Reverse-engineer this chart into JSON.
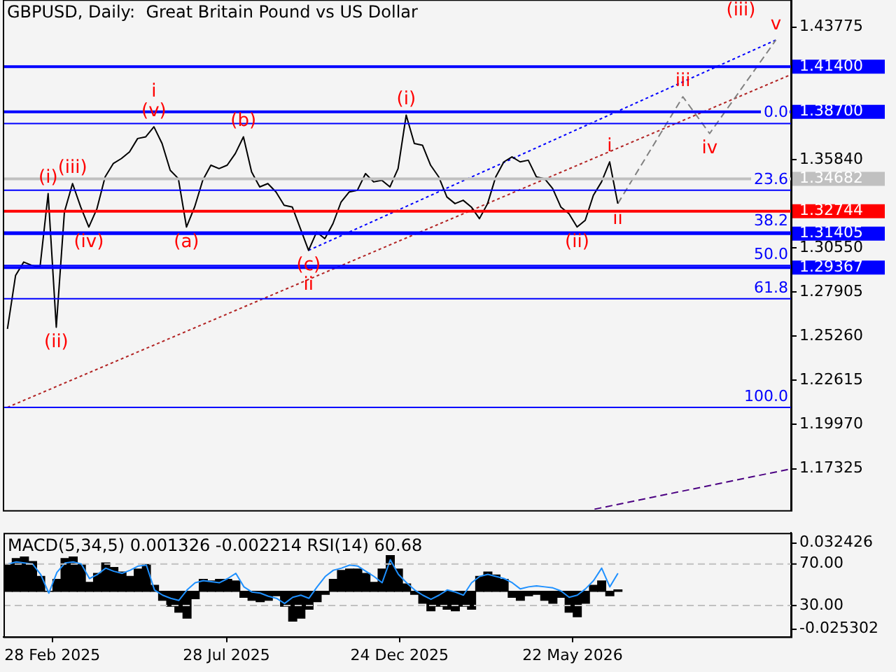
{
  "chart_data": [
    {
      "type": "line",
      "title": "GBPUSD, Daily:  Great Britain Pound vs US Dollar",
      "x": [
        "2025-01-21",
        "2025-01-28",
        "2025-02-04",
        "2025-02-11",
        "2025-02-18",
        "2025-02-25",
        "2025-03-04",
        "2025-03-11",
        "2025-03-18",
        "2025-03-25",
        "2025-04-01",
        "2025-04-08",
        "2025-04-15",
        "2025-04-22",
        "2025-04-29",
        "2025-05-06",
        "2025-05-13",
        "2025-05-20",
        "2025-05-27",
        "2025-06-03",
        "2025-06-10",
        "2025-06-17",
        "2025-06-24",
        "2025-07-01",
        "2025-07-08",
        "2025-07-15",
        "2025-07-22",
        "2025-07-29",
        "2025-08-05",
        "2025-08-12",
        "2025-08-19",
        "2025-08-26",
        "2025-09-02",
        "2025-09-09",
        "2025-09-16",
        "2025-09-23",
        "2025-09-30",
        "2025-10-07",
        "2025-10-14",
        "2025-10-21",
        "2025-10-28",
        "2025-11-04",
        "2025-11-11",
        "2025-11-18",
        "2025-11-25",
        "2025-12-02",
        "2025-12-09",
        "2025-12-16",
        "2025-12-23",
        "2025-12-30",
        "2026-01-06",
        "2026-01-13",
        "2026-01-20",
        "2026-01-27",
        "2026-02-03",
        "2026-02-10",
        "2026-02-17",
        "2026-02-24",
        "2026-03-03",
        "2026-03-10",
        "2026-03-17",
        "2026-03-24",
        "2026-03-31",
        "2026-04-07",
        "2026-04-14",
        "2026-04-21",
        "2026-04-28",
        "2026-05-05",
        "2026-05-12",
        "2026-05-19",
        "2026-05-26",
        "2026-06-02",
        "2026-06-09",
        "2026-06-16",
        "2026-06-23",
        "2026-06-30"
      ],
      "series": [
        {
          "color": "#000000",
          "values": [
            1.257,
            1.289,
            1.297,
            1.295,
            1.294,
            1.338,
            1.258,
            1.327,
            1.344,
            1.33,
            1.318,
            1.329,
            1.348,
            1.356,
            1.359,
            1.363,
            1.371,
            1.372,
            1.378,
            1.368,
            1.352,
            1.347,
            1.318,
            1.33,
            1.346,
            1.355,
            1.353,
            1.355,
            1.362,
            1.372,
            1.351,
            1.342,
            1.344,
            1.339,
            1.331,
            1.33,
            1.317,
            1.304,
            1.315,
            1.311,
            1.32,
            1.333,
            1.339,
            1.34,
            1.35,
            1.345,
            1.346,
            1.342,
            1.353,
            1.385,
            1.368,
            1.367,
            1.355,
            1.348,
            1.336,
            1.332,
            1.334,
            1.33,
            1.323,
            1.332,
            1.348,
            1.357,
            1.36,
            1.357,
            1.358,
            1.348,
            1.347,
            1.341,
            1.33,
            1.326,
            1.318,
            1.322,
            1.337,
            1.345,
            1.357,
            1.332
          ]
        },
        {
          "x": [
            "2026-06-30",
            "2026-08-25",
            "2026-09-17",
            "2026-11-13"
          ],
          "values": [
            1.332,
            1.396,
            1.374,
            1.43
          ],
          "color": "#808080",
          "line_style": "dashed"
        },
        {
          "x": [
            "2025-01-21",
            "2026-11-25"
          ],
          "values": [
            1.21,
            1.409
          ],
          "color": "#b22222",
          "line_style": "dotted"
        },
        {
          "x": [
            "2025-10-07",
            "2026-11-13"
          ],
          "values": [
            1.304,
            1.43
          ],
          "color": "#0000ff",
          "line_style": "dotted"
        },
        {
          "x": [
            "2026-06-10",
            "2026-11-25"
          ],
          "values": [
            1.149,
            1.173
          ],
          "color": "#4b0082",
          "line_style": "dashed"
        }
      ],
      "xlim": [
        "2025-01-17",
        "2026-11-26"
      ],
      "ylim": [
        1.1484,
        1.4543
      ],
      "yticks": [
        1.43775,
        {
          "value": 1.3584,
          "label": "1.35840"
        },
        {
          "value": 1.3055,
          "label": "1.30550"
        },
        1.27905,
        {
          "value": 1.2526,
          "label": "1.25260"
        },
        1.22615,
        {
          "value": 1.1997,
          "label": "1.19970"
        },
        1.17325
      ],
      "tick_labels": "y",
      "grid": false,
      "legend": false,
      "marker": "none",
      "ref_lines": [
        {
          "axis": "y",
          "value": 1.414,
          "label": "1.41400",
          "color": "#0000ff"
        },
        {
          "axis": "y",
          "value": 1.387,
          "label": "1.38700",
          "color": "#0000ff"
        },
        {
          "axis": "y",
          "value": 1.34682,
          "label": "1.34682",
          "color": "#c0c0c0"
        },
        {
          "axis": "y",
          "value": 1.32744,
          "label": "1.32744",
          "color": "#ff0000"
        },
        {
          "axis": "y",
          "value": 1.31405,
          "label": "1.31405",
          "color": "#0000ff"
        },
        {
          "axis": "y",
          "value": 1.29367,
          "label": "1.29367",
          "color": "#0000ff"
        },
        {
          "axis": "y",
          "value": 1.38,
          "color": "#0000ff",
          "line_style": "solid"
        },
        {
          "axis": "y",
          "value": 1.34,
          "color": "#0000ff",
          "line_style": "solid"
        },
        {
          "axis": "y",
          "value": 1.315,
          "color": "#0000ff",
          "line_style": "solid"
        },
        {
          "axis": "y",
          "value": 1.295,
          "color": "#0000ff",
          "line_style": "solid"
        },
        {
          "axis": "y",
          "value": 1.275,
          "color": "#0000ff",
          "line_style": "solid"
        },
        {
          "axis": "y",
          "value": 1.21,
          "color": "#0000ff",
          "line_style": "solid"
        }
      ],
      "annotations": [
        "0.0",
        "23.6",
        "38.2",
        "50.0",
        "61.8",
        "100.0",
        {
          "text": "(i)",
          "x": "2025-02-25",
          "y": 1.338
        },
        {
          "text": "(ii)",
          "x": "2025-03-04",
          "y": 1.258
        },
        {
          "text": "(iii)",
          "x": "2025-03-18",
          "y": 1.344
        },
        {
          "text": "(iv)",
          "x": "2025-04-01",
          "y": 1.318
        },
        {
          "text": "(v)",
          "x": "2025-05-27",
          "y": 1.378
        },
        {
          "text": "i",
          "x": "2025-05-27",
          "y": 1.378
        },
        {
          "text": "(a)",
          "x": "2025-06-24",
          "y": 1.318
        },
        {
          "text": "(b)",
          "x": "2025-08-12",
          "y": 1.372
        },
        {
          "text": "(c)",
          "x": "2025-10-07",
          "y": 1.304
        },
        {
          "text": "ii",
          "x": "2025-10-07",
          "y": 1.304
        },
        {
          "text": "(i)",
          "x": "2025-12-30",
          "y": 1.385
        },
        {
          "text": "(ii)",
          "x": "2026-05-26",
          "y": 1.318
        },
        {
          "text": "i",
          "x": "2026-06-23",
          "y": 1.357
        },
        {
          "text": "ii",
          "x": "2026-06-30",
          "y": 1.332
        },
        {
          "text": "iii",
          "x": "2026-08-25",
          "y": 1.396
        },
        {
          "text": "iv",
          "x": "2026-09-17",
          "y": 1.374
        },
        {
          "text": "v",
          "x": "2026-11-13",
          "y": 1.43
        },
        {
          "text": "(iii)",
          "x": "2026-11-13",
          "y": 1.43
        }
      ]
    },
    {
      "type": "bar",
      "title": "MACD(5,34,5) 0.001326 -0.002214 RSI(14) 60.68",
      "x": [
        "2025-01-21",
        "2025-01-28",
        "2025-02-04",
        "2025-02-11",
        "2025-02-18",
        "2025-02-25",
        "2025-03-04",
        "2025-03-11",
        "2025-03-18",
        "2025-03-25",
        "2025-04-01",
        "2025-04-08",
        "2025-04-15",
        "2025-04-22",
        "2025-04-29",
        "2025-05-06",
        "2025-05-13",
        "2025-05-20",
        "2025-05-27",
        "2025-06-03",
        "2025-06-10",
        "2025-06-17",
        "2025-06-24",
        "2025-07-01",
        "2025-07-08",
        "2025-07-15",
        "2025-07-22",
        "2025-07-29",
        "2025-08-05",
        "2025-08-12",
        "2025-08-19",
        "2025-08-26",
        "2025-09-02",
        "2025-09-09",
        "2025-09-16",
        "2025-09-23",
        "2025-09-30",
        "2025-10-07",
        "2025-10-14",
        "2025-10-21",
        "2025-10-28",
        "2025-11-04",
        "2025-11-11",
        "2025-11-18",
        "2025-11-25",
        "2025-12-02",
        "2025-12-09",
        "2025-12-16",
        "2025-12-23",
        "2025-12-30",
        "2026-01-06",
        "2026-01-13",
        "2026-01-20",
        "2026-01-27",
        "2026-02-03",
        "2026-02-10",
        "2026-02-17",
        "2026-02-24",
        "2026-03-03",
        "2026-03-10",
        "2026-03-17",
        "2026-03-24",
        "2026-03-31",
        "2026-04-07",
        "2026-04-14",
        "2026-04-21",
        "2026-04-28",
        "2026-05-05",
        "2026-05-12",
        "2026-05-19",
        "2026-05-26",
        "2026-06-02",
        "2026-06-09",
        "2026-06-16",
        "2026-06-23",
        "2026-06-30"
      ],
      "series": [
        {
          "color": "#000000",
          "values": [
            0.018,
            0.022,
            0.023,
            0.02,
            0.01,
            0.0,
            0.008,
            0.022,
            0.023,
            0.018,
            0.006,
            0.012,
            0.019,
            0.016,
            0.013,
            0.01,
            0.015,
            0.018,
            0.004,
            -0.006,
            -0.01,
            -0.014,
            -0.018,
            -0.005,
            0.008,
            0.007,
            0.008,
            0.008,
            0.007,
            -0.004,
            -0.006,
            -0.007,
            -0.006,
            -0.003,
            -0.01,
            -0.02,
            -0.018,
            -0.012,
            -0.007,
            -0.002,
            0.008,
            0.014,
            0.015,
            0.015,
            0.012,
            0.006,
            0.015,
            0.024,
            0.015,
            0.005,
            -0.002,
            -0.008,
            -0.013,
            -0.01,
            -0.012,
            -0.013,
            -0.01,
            -0.012,
            0.01,
            0.013,
            0.011,
            0.008,
            -0.004,
            -0.006,
            -0.003,
            -0.002,
            -0.006,
            -0.008,
            -0.004,
            -0.014,
            -0.017,
            -0.008,
            0.004,
            0.007,
            -0.003,
            0.001
          ]
        },
        {
          "type": "line",
          "axis": "y2",
          "color": "#1e90ff",
          "values": [
            70,
            72,
            71,
            70,
            60,
            42,
            62,
            71,
            72,
            70,
            56,
            60,
            66,
            63,
            61,
            64,
            68,
            69,
            45,
            40,
            37,
            35,
            45,
            52,
            54,
            53,
            52,
            56,
            61,
            48,
            43,
            42,
            39,
            37,
            32,
            38,
            40,
            37,
            48,
            58,
            64,
            66,
            69,
            68,
            63,
            58,
            52,
            74,
            60,
            52,
            45,
            40,
            36,
            40,
            45,
            43,
            40,
            52,
            58,
            60,
            58,
            56,
            52,
            46,
            48,
            49,
            48,
            47,
            44,
            38,
            40,
            46,
            54,
            66,
            48,
            61
          ]
        }
      ],
      "xlim": [
        "2025-01-17",
        "2026-11-26"
      ],
      "xticks": [
        {
          "value": "2025-02-28",
          "label": "28 Feb 2025"
        },
        {
          "value": "2025-07-28",
          "label": "28 Jul 2025"
        },
        {
          "value": "2025-12-24",
          "label": "24 Dec 2025"
        },
        {
          "value": "2026-05-22",
          "label": "22 May 2026"
        }
      ],
      "ylim": [
        -0.0304,
        0.0392
      ],
      "yticks": [
        0.032426,
        -0.025302
      ],
      "y2lim": [
        0,
        100
      ],
      "y2ticks": [
        {
          "value": 70,
          "label": "70.00"
        },
        {
          "value": 30,
          "label": "30.00"
        }
      ],
      "grid": false,
      "legend": false,
      "marker": "none",
      "ref_lines": [
        {
          "axis": "y2",
          "value": 70,
          "color": "#c0c0c0",
          "line_style": "dashed"
        },
        {
          "axis": "y2",
          "value": 30,
          "color": "#c0c0c0",
          "line_style": "dashed"
        }
      ]
    }
  ]
}
